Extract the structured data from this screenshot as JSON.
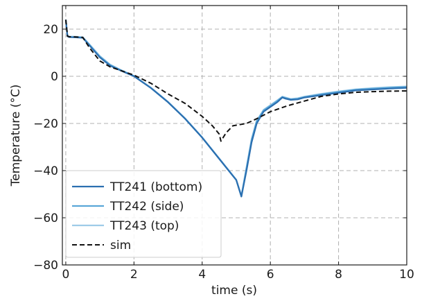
{
  "chart_data": {
    "type": "line",
    "xlabel": "time (s)",
    "ylabel": "Temperature (°C)",
    "xlim": [
      -0.1,
      10
    ],
    "ylim": [
      -80,
      30
    ],
    "xticks": [
      0,
      2,
      4,
      6,
      8,
      10
    ],
    "xtick_labels": [
      "0",
      "2",
      "4",
      "6",
      "8",
      "10"
    ],
    "yticks": [
      -80,
      -60,
      -40,
      -20,
      0,
      20
    ],
    "ytick_labels": [
      "−80",
      "−60",
      "−40",
      "−20",
      "0",
      "20"
    ],
    "grid": true,
    "legend_position": "lower-left",
    "series": [
      {
        "name": "TT241 (bottom)",
        "color": "#2b6fb0",
        "dash": "solid",
        "x": [
          0,
          0.05,
          0.1,
          0.3,
          0.5,
          0.7,
          1.0,
          1.3,
          1.6,
          2.0,
          2.5,
          3.0,
          3.5,
          4.0,
          4.5,
          5.0,
          5.15,
          5.3,
          5.45,
          5.6,
          5.8,
          6.0,
          6.2,
          6.35,
          6.45,
          6.6,
          6.8,
          7.0,
          7.5,
          8.0,
          8.5,
          9.0,
          9.5,
          10.0
        ],
        "y": [
          24,
          17,
          16.6,
          16.5,
          16.3,
          13,
          8,
          4.5,
          2.5,
          0,
          -5,
          -11,
          -18,
          -26,
          -35,
          -44,
          -51,
          -40,
          -28,
          -20,
          -15,
          -13,
          -11,
          -9,
          -9.5,
          -10,
          -9.8,
          -9,
          -8,
          -7,
          -6,
          -5.6,
          -5.2,
          -4.9
        ]
      },
      {
        "name": "TT242 (side)",
        "color": "#5aa7d8",
        "dash": "solid",
        "x": [
          0,
          0.05,
          0.1,
          0.3,
          0.5,
          0.7,
          1.0,
          1.3,
          1.6,
          2.0,
          2.5,
          3.0,
          3.5,
          4.0,
          4.5,
          5.0,
          5.15,
          5.3,
          5.45,
          5.6,
          5.8,
          6.0,
          6.2,
          6.35,
          6.45,
          6.6,
          6.8,
          7.0,
          7.5,
          8.0,
          8.5,
          9.0,
          9.5,
          10.0
        ],
        "y": [
          24,
          17,
          16.7,
          16.6,
          16.4,
          13.2,
          8.3,
          4.8,
          2.7,
          0.1,
          -5,
          -11,
          -18,
          -26,
          -35,
          -44,
          -51,
          -39,
          -27,
          -19,
          -14.5,
          -12.5,
          -10.5,
          -8.8,
          -9.2,
          -9.8,
          -9.5,
          -8.8,
          -7.6,
          -6.6,
          -5.7,
          -5.2,
          -4.8,
          -4.5
        ]
      },
      {
        "name": "TT243 (top)",
        "color": "#9ecbe8",
        "dash": "solid",
        "x": [
          0,
          0.05,
          0.1,
          0.3,
          0.5,
          0.7,
          1.0,
          1.3,
          1.6,
          2.0,
          2.5,
          3.0,
          3.5,
          4.0,
          4.5,
          5.0,
          5.15,
          5.3,
          5.45,
          5.6,
          5.8,
          6.0,
          6.2,
          6.35,
          6.45,
          6.6,
          6.8,
          7.0,
          7.5,
          8.0,
          8.5,
          9.0,
          9.5,
          10.0
        ],
        "y": [
          24,
          17.2,
          16.9,
          16.8,
          16.6,
          13.5,
          8.6,
          5,
          2.8,
          0.2,
          -4.8,
          -10.8,
          -17.8,
          -25.8,
          -34.8,
          -43.8,
          -50.5,
          -38.5,
          -26.5,
          -18.8,
          -14.2,
          -12.2,
          -10.2,
          -8.6,
          -9,
          -9.6,
          -9.3,
          -8.6,
          -7.4,
          -6.4,
          -5.5,
          -5,
          -4.6,
          -4.3
        ]
      },
      {
        "name": "sim",
        "color": "#111111",
        "dash": "dashed",
        "x": [
          0,
          0.05,
          0.1,
          0.3,
          0.5,
          0.7,
          1.0,
          1.3,
          1.6,
          2.0,
          2.5,
          3.0,
          3.5,
          4.0,
          4.3,
          4.5,
          4.55,
          4.7,
          4.9,
          5.1,
          5.3,
          5.6,
          6.0,
          6.5,
          7.0,
          7.5,
          8.0,
          8.5,
          9.0,
          9.5,
          10.0
        ],
        "y": [
          24,
          17,
          16.8,
          16.7,
          16.5,
          12,
          6.5,
          4,
          2.5,
          0.5,
          -3,
          -7.5,
          -11.5,
          -17,
          -21,
          -24.5,
          -27.5,
          -24,
          -21,
          -20.5,
          -20,
          -18,
          -15,
          -12.5,
          -10.5,
          -8.5,
          -7.5,
          -6.8,
          -6.5,
          -6.3,
          -6.2
        ]
      }
    ]
  }
}
